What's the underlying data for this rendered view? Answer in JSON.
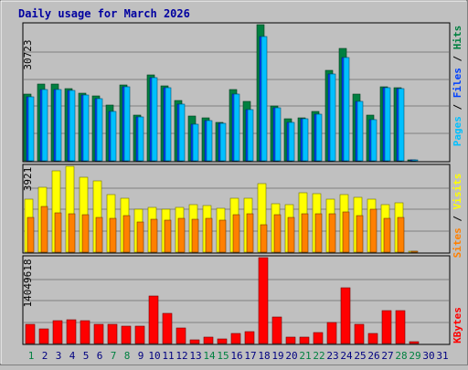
{
  "title": "Daily usage for March 2026",
  "colors": {
    "background": "#c0c0c0",
    "title": "#0000a0",
    "hits": "#008040",
    "files": "#0040ff",
    "pages": "#00c0ff",
    "visits": "#ffff00",
    "sites": "#ff8000",
    "kbytes": "#ff0000",
    "day_weekend": "#008040",
    "day_weekday": "#000080"
  },
  "chart_data": [
    {
      "type": "bar",
      "panel": "hits-files-pages",
      "scale_max_label": "30723",
      "ylim": [
        0,
        30723
      ],
      "legend_labels": [
        "Pages",
        "Files",
        "Hits"
      ],
      "categories": [
        "1",
        "2",
        "3",
        "4",
        "5",
        "6",
        "7",
        "8",
        "9",
        "10",
        "11",
        "12",
        "13",
        "14",
        "15",
        "16",
        "17",
        "18",
        "19",
        "20",
        "21",
        "22",
        "23",
        "24",
        "25",
        "26",
        "27",
        "28",
        "29",
        "30",
        "31"
      ],
      "series": [
        {
          "name": "Hits",
          "values": [
            15100,
            17400,
            17300,
            16300,
            15300,
            14700,
            12500,
            17200,
            10400,
            19400,
            17000,
            13600,
            10100,
            9600,
            8700,
            16000,
            13300,
            30700,
            12400,
            9500,
            9700,
            11200,
            20500,
            25400,
            15000,
            10300,
            16800,
            16500,
            200,
            0,
            0
          ]
        },
        {
          "name": "Files",
          "values": [
            14500,
            16100,
            16000,
            15800,
            14800,
            14000,
            11100,
            16800,
            9800,
            18700,
            16400,
            12800,
            8300,
            9000,
            8400,
            15000,
            11500,
            28000,
            12000,
            8700,
            9500,
            10500,
            19500,
            23200,
            13400,
            9200,
            16400,
            16200,
            100,
            0,
            0
          ]
        },
        {
          "name": "Pages",
          "values": [
            14500,
            16100,
            16000,
            15800,
            14800,
            14000,
            11100,
            16800,
            9800,
            18700,
            16400,
            12800,
            8300,
            9000,
            8400,
            15000,
            11500,
            28000,
            12000,
            8700,
            9500,
            10500,
            19500,
            23200,
            13400,
            9200,
            16400,
            16200,
            100,
            0,
            0
          ]
        }
      ]
    },
    {
      "type": "bar",
      "panel": "visits-sites",
      "scale_max_label": "3921",
      "ylim": [
        0,
        3921
      ],
      "legend_labels": [
        "Sites",
        "Visits"
      ],
      "categories": [
        "1",
        "2",
        "3",
        "4",
        "5",
        "6",
        "7",
        "8",
        "9",
        "10",
        "11",
        "12",
        "13",
        "14",
        "15",
        "16",
        "17",
        "18",
        "19",
        "20",
        "21",
        "22",
        "23",
        "24",
        "25",
        "26",
        "27",
        "28",
        "29",
        "30",
        "31"
      ],
      "series": [
        {
          "name": "Visits",
          "values": [
            2440,
            2960,
            3700,
            3920,
            3420,
            3270,
            2620,
            2480,
            1940,
            2060,
            1940,
            2060,
            2160,
            2140,
            2000,
            2450,
            2460,
            3140,
            2230,
            2160,
            2720,
            2690,
            2400,
            2620,
            2500,
            2410,
            2160,
            2260,
            40,
            0,
            0
          ]
        },
        {
          "name": "Sites",
          "values": [
            1580,
            2080,
            1780,
            1760,
            1700,
            1600,
            1540,
            1660,
            1380,
            1500,
            1480,
            1540,
            1500,
            1560,
            1440,
            1720,
            1740,
            1270,
            1700,
            1580,
            1760,
            1740,
            1740,
            1850,
            1660,
            1960,
            1530,
            1600,
            20,
            0,
            0
          ]
        }
      ]
    },
    {
      "type": "bar",
      "panel": "kbytes",
      "scale_max_label": "14049618",
      "ylim": [
        0,
        14049618
      ],
      "legend_labels": [
        "KBytes"
      ],
      "categories": [
        "1",
        "2",
        "3",
        "4",
        "5",
        "6",
        "7",
        "8",
        "9",
        "10",
        "11",
        "12",
        "13",
        "14",
        "15",
        "16",
        "17",
        "18",
        "19",
        "20",
        "21",
        "22",
        "23",
        "24",
        "25",
        "26",
        "27",
        "28",
        "29",
        "30",
        "31"
      ],
      "series": [
        {
          "name": "KBytes",
          "values": [
            3200000,
            2400000,
            3700000,
            3900000,
            3800000,
            3200000,
            3200000,
            2800000,
            2900000,
            7700000,
            5000000,
            2500000,
            600000,
            1000000,
            800000,
            1600000,
            1900000,
            14000000,
            4300000,
            1000000,
            1000000,
            1800000,
            3400000,
            9100000,
            3200000,
            1600000,
            5400000,
            5400000,
            300000,
            0,
            0
          ]
        }
      ]
    }
  ],
  "weekend_days": [
    "1",
    "7",
    "8",
    "14",
    "15",
    "21",
    "22",
    "28",
    "29"
  ]
}
